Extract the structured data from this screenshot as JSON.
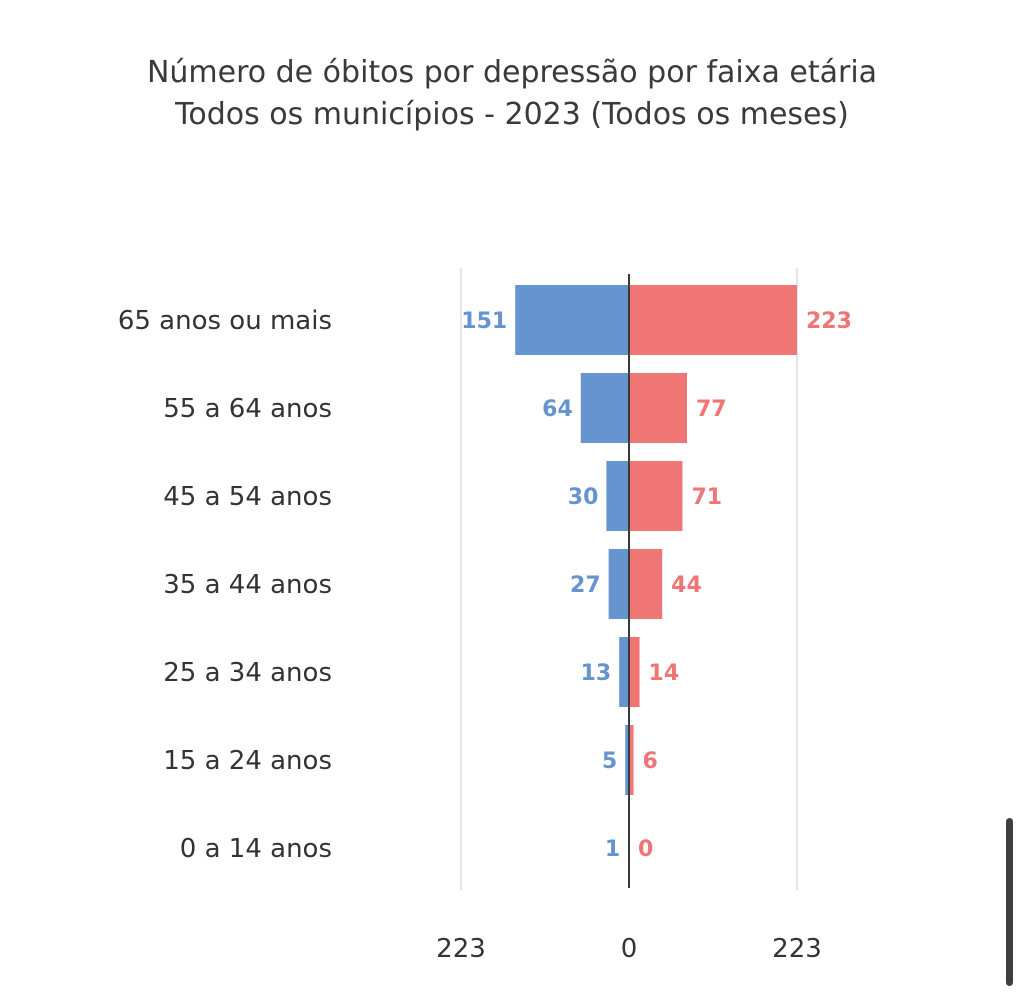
{
  "chart_data": {
    "type": "bar",
    "orientation": "horizontal-diverging",
    "title": "Número de óbitos por depressão por faixa etária",
    "subtitle": "Todos os municípios - 2023 (Todos os meses)",
    "categories": [
      "65 anos ou mais",
      "55 a 64 anos",
      "45 a 54 anos",
      "35 a 44 anos",
      "25 a 34 anos",
      "15 a 24 anos",
      "0 a 14 anos"
    ],
    "series": [
      {
        "values": [
          151,
          64,
          30,
          27,
          13,
          5,
          1
        ],
        "color": "#6694cf",
        "side": "left"
      },
      {
        "values": [
          223,
          77,
          71,
          44,
          14,
          6,
          0
        ],
        "color": "#f07575",
        "side": "right"
      }
    ],
    "xlim": [
      -223,
      223
    ],
    "x_ticks": [
      "223",
      "0",
      "223"
    ],
    "grid": true,
    "legend": "none"
  },
  "ui": {
    "scrollbar": "vertical-scrollbar"
  }
}
